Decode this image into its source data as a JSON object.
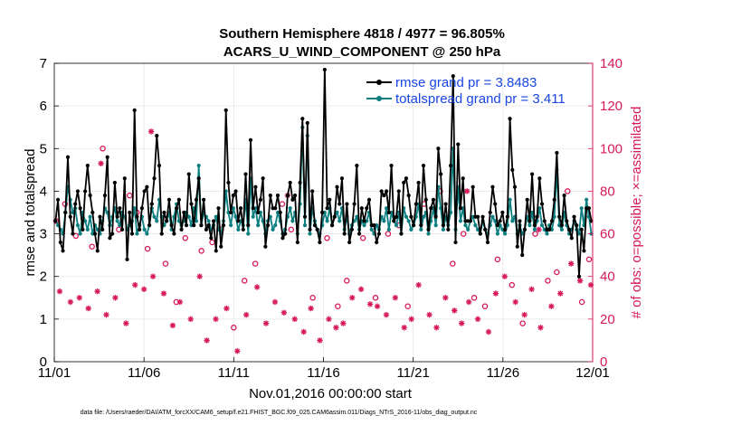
{
  "chart_data": {
    "type": "line",
    "title_line1": "Southern Hemisphere 4818 / 4977 = 96.805%",
    "title_line2": "ACARS_U_WIND_COMPONENT @ 250 hPa",
    "xlabel": "Nov.01,2016 00:00:00 start",
    "ylabel_left": "rmse and totalspread",
    "ylabel_right": "# of obs: o=possible; ×=assimilated",
    "footer": "data file: /Users/raeder/DAI/ATM_forcXX/CAM6_setup/f.e21.FHIST_BGC.f09_025.CAM6assim.011/Diags_NTrS_2016-11/obs_diag_output.nc",
    "xlim": [
      0,
      30
    ],
    "ylim_left": [
      0,
      7
    ],
    "ylim_right": [
      0,
      140
    ],
    "x_ticks": [
      0,
      5,
      10,
      15,
      20,
      25,
      30
    ],
    "x_tick_labels": [
      "11/01",
      "11/06",
      "11/11",
      "11/16",
      "11/21",
      "11/26",
      "12/01"
    ],
    "y_ticks_left": [
      0,
      1,
      2,
      3,
      4,
      5,
      6,
      7
    ],
    "y_ticks_right": [
      0,
      20,
      40,
      60,
      80,
      100,
      120,
      140
    ],
    "grid": true,
    "colors": {
      "rmse": "#000000",
      "spread": "#0e7f80",
      "obs": "#d6195a",
      "legend_text": "#1a46e0"
    },
    "legend": [
      {
        "label": "rmse grand pr = 3.8483",
        "series": "rmse"
      },
      {
        "label": "totalspread grand pr = 3.411",
        "series": "spread"
      }
    ],
    "series": [
      {
        "name": "rmse",
        "values": [
          3.3,
          3.8,
          2.8,
          2.6,
          3.5,
          4.8,
          3.4,
          3.0,
          3.7,
          4.0,
          3.6,
          3.1,
          4.0,
          4.6,
          3.9,
          3.5,
          3.0,
          2.6,
          3.4,
          3.1,
          3.9,
          4.8,
          2.9,
          3.0,
          4.2,
          3.4,
          3.6,
          3.1,
          4.3,
          2.4,
          3.5,
          3.0,
          5.9,
          3.4,
          3.1,
          3.6,
          4.0,
          4.1,
          3.2,
          3.7,
          4.3,
          5.3,
          4.6,
          3.0,
          3.5,
          3.3,
          3.8,
          3.2,
          3.0,
          3.6,
          3.8,
          3.1,
          3.5,
          3.2,
          4.4,
          3.7,
          3.2,
          3.8,
          4.3,
          3.2,
          3.8,
          3.1,
          3.2,
          2.9,
          3.3,
          2.6,
          3.6,
          2.7,
          3.2,
          5.9,
          4.2,
          3.5,
          3.9,
          4.0,
          3.3,
          3.6,
          3.1,
          4.4,
          3.2,
          5.2,
          3.6,
          4.1,
          3.5,
          3.8,
          4.3,
          2.7,
          3.2,
          3.9,
          3.6,
          3.6,
          3.9,
          3.5,
          2.9,
          3.0,
          3.9,
          4.2,
          3.8,
          3.9,
          2.8,
          4.2,
          5.7,
          3.4,
          5.6,
          3.1,
          4.0,
          3.2,
          3.1,
          2.8,
          3.5,
          6.85,
          3.6,
          3.8,
          3.2,
          3.4,
          4.1,
          3.7,
          4.3,
          3.0,
          3.7,
          2.8,
          3.1,
          3.7,
          4.6,
          3.0,
          3.6,
          3.3,
          3.6,
          3.8,
          3.2,
          3.2,
          2.8,
          3.0,
          4.0,
          3.9,
          4.0,
          3.5,
          4.6,
          3.3,
          3.4,
          4.0,
          3.0,
          4.2,
          4.3,
          3.9,
          3.4,
          3.2,
          3.7,
          4.2,
          3.2,
          4.6,
          3.8,
          3.1,
          3.6,
          3.8,
          3.4,
          5.0,
          4.4,
          3.2,
          3.7,
          3.1,
          4.6,
          6.7,
          2.8,
          5.1,
          3.6,
          4.3,
          3.3,
          3.3,
          3.3,
          4.1,
          3.4,
          3.4,
          3.0,
          3.4,
          3.1,
          2.8,
          3.5,
          4.1,
          3.7,
          3.2,
          3.3,
          3.5,
          3.1,
          3.4,
          5.7,
          4.5,
          4.1,
          2.7,
          3.3,
          2.5,
          3.1,
          3.8,
          3.3,
          4.4,
          3.2,
          3.4,
          4.3,
          3.7,
          3.3,
          3.1,
          3.1,
          3.3,
          3.8,
          4.9,
          3.4,
          3.2,
          3.9,
          3.3,
          3.1,
          2.9,
          3.4,
          3.2,
          2.0,
          3.1,
          2.6,
          3.6,
          3.6,
          3.3
        ]
      },
      {
        "name": "totalspread",
        "values": [
          3.3,
          3.2,
          3.1,
          3.0,
          3.5,
          4.1,
          3.8,
          3.5,
          3.6,
          3.2,
          3.0,
          3.5,
          3.3,
          3.1,
          3.4,
          3.0,
          3.2,
          3.1,
          3.0,
          3.3,
          3.6,
          3.5,
          3.2,
          3.4,
          3.6,
          3.3,
          3.2,
          3.5,
          3.4,
          3.1,
          3.2,
          3.3,
          3.6,
          3.0,
          3.2,
          3.4,
          3.1,
          3.0,
          3.2,
          3.6,
          3.4,
          3.3,
          3.8,
          3.4,
          3.2,
          3.3,
          3.5,
          3.1,
          3.4,
          3.7,
          3.3,
          3.2,
          3.3,
          3.5,
          3.4,
          3.2,
          3.6,
          3.3,
          4.6,
          3.2,
          3.5,
          3.4,
          3.3,
          3.1,
          3.2,
          3.4,
          3.1,
          3.0,
          3.3,
          4.0,
          3.5,
          3.2,
          3.6,
          3.4,
          3.1,
          3.3,
          3.2,
          3.8,
          3.0,
          4.3,
          3.4,
          3.6,
          3.2,
          3.5,
          3.3,
          3.0,
          3.3,
          3.4,
          3.1,
          3.2,
          3.5,
          3.3,
          3.0,
          3.1,
          3.4,
          3.6,
          3.3,
          3.5,
          3.0,
          3.7,
          5.5,
          3.2,
          5.3,
          3.0,
          3.6,
          3.3,
          3.1,
          3.0,
          3.2,
          3.5,
          3.3,
          3.6,
          3.2,
          3.4,
          3.5,
          3.3,
          3.6,
          3.1,
          3.4,
          3.0,
          3.2,
          3.3,
          3.4,
          3.1,
          3.3,
          3.2,
          3.3,
          3.5,
          3.1,
          3.0,
          3.2,
          3.1,
          3.4,
          3.3,
          3.6,
          3.1,
          3.5,
          3.3,
          3.2,
          3.5,
          3.0,
          3.6,
          3.4,
          3.3,
          3.1,
          3.2,
          3.4,
          3.7,
          3.1,
          3.4,
          3.5,
          3.0,
          3.3,
          3.6,
          3.2,
          4.1,
          3.6,
          3.1,
          3.4,
          3.2,
          3.5,
          5.0,
          3.1,
          4.1,
          3.3,
          3.6,
          3.2,
          3.1,
          3.3,
          3.4,
          3.2,
          3.1,
          3.0,
          3.3,
          3.1,
          3.0,
          3.2,
          3.4,
          3.3,
          3.0,
          3.2,
          3.1,
          3.0,
          3.2,
          3.8,
          3.3,
          3.4,
          3.0,
          3.2,
          3.0,
          3.1,
          3.4,
          3.2,
          3.5,
          3.1,
          3.3,
          3.6,
          3.2,
          3.1,
          3.0,
          3.2,
          3.1,
          3.4,
          4.5,
          3.2,
          3.1,
          3.5,
          3.2,
          3.0,
          3.1,
          3.3,
          3.1,
          3.0,
          3.6,
          3.2,
          3.8,
          3.4,
          3.0
        ]
      }
    ],
    "obs_possible": [
      [
        0.1,
        66
      ],
      [
        0.6,
        74
      ],
      [
        1.2,
        59
      ],
      [
        2.1,
        54
      ],
      [
        2.7,
        100
      ],
      [
        3.6,
        62
      ],
      [
        4.2,
        78
      ],
      [
        4.6,
        70
      ],
      [
        5.2,
        53
      ],
      [
        6.2,
        46
      ],
      [
        6.8,
        28
      ],
      [
        7.3,
        58
      ],
      [
        8.2,
        52
      ],
      [
        8.8,
        56
      ],
      [
        9.3,
        62
      ],
      [
        10.0,
        16
      ],
      [
        10.6,
        38
      ],
      [
        11.2,
        46
      ],
      [
        12.7,
        74
      ],
      [
        13.2,
        62
      ],
      [
        14.4,
        30
      ],
      [
        15.2,
        58
      ],
      [
        15.8,
        26
      ],
      [
        16.3,
        38
      ],
      [
        17.2,
        58
      ],
      [
        17.9,
        30
      ],
      [
        18.6,
        60
      ],
      [
        19.2,
        64
      ],
      [
        19.7,
        26
      ],
      [
        20.6,
        74
      ],
      [
        21.5,
        80
      ],
      [
        22.2,
        46
      ],
      [
        22.8,
        60
      ],
      [
        23.4,
        30
      ],
      [
        24.0,
        26
      ],
      [
        24.7,
        48
      ],
      [
        25.5,
        36
      ],
      [
        26.1,
        18
      ],
      [
        26.8,
        60
      ],
      [
        27.5,
        38
      ],
      [
        28.0,
        42
      ],
      [
        28.6,
        80
      ],
      [
        29.4,
        28
      ],
      [
        29.8,
        48
      ]
    ],
    "obs_assimilated": [
      [
        0.3,
        33
      ],
      [
        0.9,
        28
      ],
      [
        1.4,
        30
      ],
      [
        1.9,
        25
      ],
      [
        2.4,
        33
      ],
      [
        2.9,
        22
      ],
      [
        3.4,
        30
      ],
      [
        4.0,
        18
      ],
      [
        4.5,
        36
      ],
      [
        5.0,
        34
      ],
      [
        5.5,
        40
      ],
      [
        6.1,
        32
      ],
      [
        6.6,
        17
      ],
      [
        7.0,
        28
      ],
      [
        7.6,
        20
      ],
      [
        8.1,
        40
      ],
      [
        8.5,
        10
      ],
      [
        9.0,
        20
      ],
      [
        9.6,
        25
      ],
      [
        10.2,
        5
      ],
      [
        10.7,
        22
      ],
      [
        11.3,
        35
      ],
      [
        11.8,
        18
      ],
      [
        12.3,
        28
      ],
      [
        12.8,
        23
      ],
      [
        13.4,
        20
      ],
      [
        13.9,
        14
      ],
      [
        14.3,
        25
      ],
      [
        14.8,
        10
      ],
      [
        15.3,
        20
      ],
      [
        15.7,
        16
      ],
      [
        16.1,
        18
      ],
      [
        16.6,
        30
      ],
      [
        17.1,
        34
      ],
      [
        17.6,
        27
      ],
      [
        18.0,
        26
      ],
      [
        18.5,
        22
      ],
      [
        19.0,
        30
      ],
      [
        19.5,
        16
      ],
      [
        19.9,
        20
      ],
      [
        20.3,
        36
      ],
      [
        20.9,
        22
      ],
      [
        21.3,
        16
      ],
      [
        21.8,
        30
      ],
      [
        22.3,
        24
      ],
      [
        22.7,
        18
      ],
      [
        23.1,
        28
      ],
      [
        23.6,
        20
      ],
      [
        24.2,
        14
      ],
      [
        24.6,
        32
      ],
      [
        25.1,
        40
      ],
      [
        25.7,
        28
      ],
      [
        26.2,
        22
      ],
      [
        26.6,
        34
      ],
      [
        27.1,
        16
      ],
      [
        27.7,
        26
      ],
      [
        28.2,
        32
      ],
      [
        28.8,
        46
      ],
      [
        29.3,
        38
      ],
      [
        29.9,
        36
      ],
      [
        2.6,
        93
      ],
      [
        5.4,
        108
      ],
      [
        13.0,
        78
      ],
      [
        23.0,
        80
      ],
      [
        27.0,
        62
      ]
    ]
  }
}
